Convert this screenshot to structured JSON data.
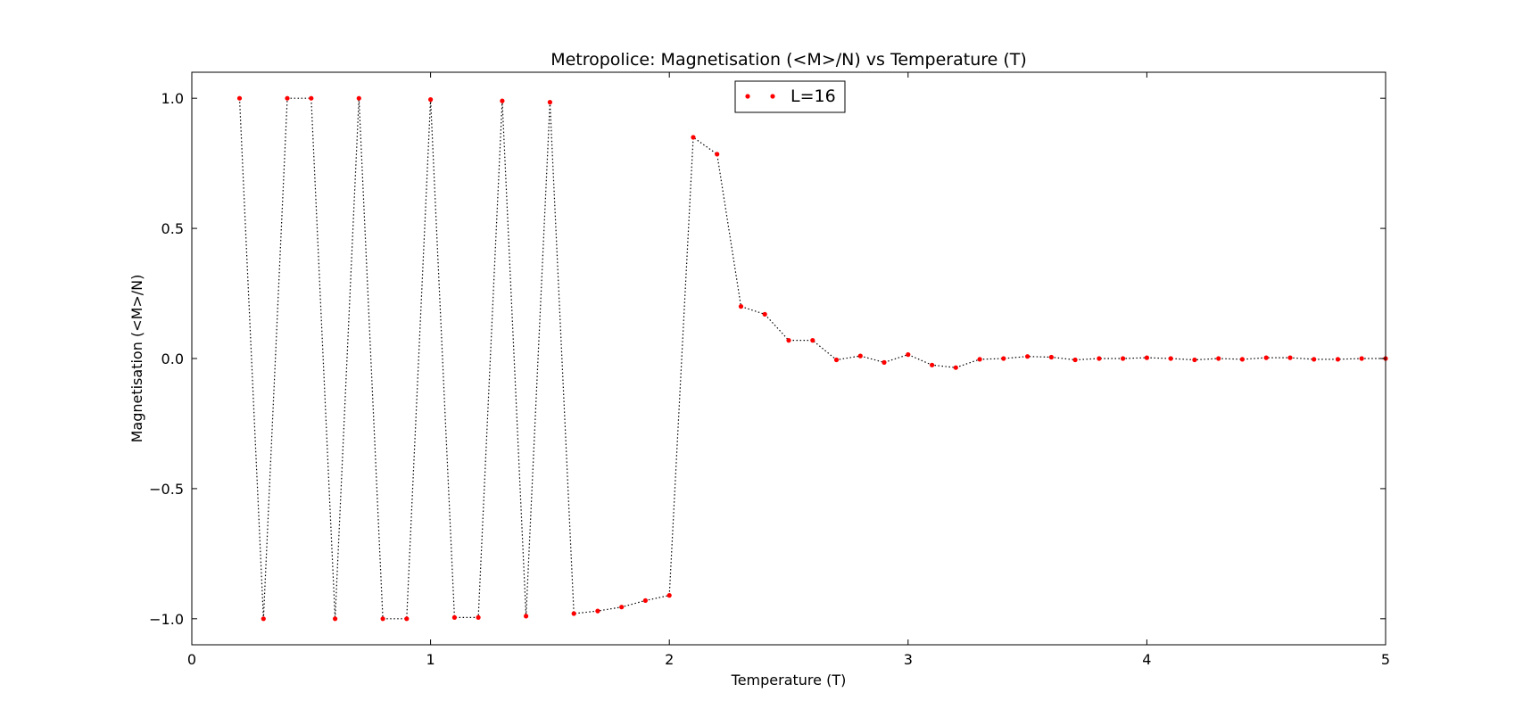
{
  "chart_data": {
    "type": "line",
    "title": "Metropolice: Magnetisation (<M>/N) vs Temperature (T)",
    "xlabel": "Temperature (T)",
    "ylabel": "Magnetisation (<M>/N)",
    "xlim": [
      0,
      5
    ],
    "ylim": [
      -1.1,
      1.1
    ],
    "xticks": [
      0,
      1,
      2,
      3,
      4,
      5
    ],
    "xtick_labels": [
      "0",
      "1",
      "2",
      "3",
      "4",
      "5"
    ],
    "yticks": [
      -1.0,
      -0.5,
      0.0,
      0.5,
      1.0
    ],
    "ytick_labels": [
      "−1.0",
      "−0.5",
      "0.0",
      "0.5",
      "1.0"
    ],
    "grid": false,
    "legend": {
      "position": "top-center"
    },
    "series": [
      {
        "name": "L=16",
        "color": "#ff0000",
        "line_color": "#000000",
        "line_style": "dotted",
        "marker": "point",
        "x": [
          0.2,
          0.3,
          0.4,
          0.5,
          0.6,
          0.7,
          0.8,
          0.9,
          1.0,
          1.1,
          1.2,
          1.3,
          1.4,
          1.5,
          1.6,
          1.7,
          1.8,
          1.9,
          2.0,
          2.1,
          2.2,
          2.3,
          2.4,
          2.5,
          2.6,
          2.7,
          2.8,
          2.9,
          3.0,
          3.1,
          3.2,
          3.3,
          3.4,
          3.5,
          3.6,
          3.7,
          3.8,
          3.9,
          4.0,
          4.1,
          4.2,
          4.3,
          4.4,
          4.5,
          4.6,
          4.7,
          4.8,
          4.9,
          5.0
        ],
        "y": [
          1.0,
          -1.0,
          1.0,
          1.0,
          -1.0,
          1.0,
          -1.0,
          -1.0,
          0.995,
          -0.995,
          -0.995,
          0.99,
          -0.99,
          0.985,
          -0.98,
          -0.97,
          -0.955,
          -0.93,
          -0.91,
          0.85,
          0.785,
          0.2,
          0.17,
          0.07,
          0.07,
          -0.005,
          0.01,
          -0.015,
          0.015,
          -0.025,
          -0.035,
          -0.003,
          0.0,
          0.008,
          0.005,
          -0.005,
          0.0,
          0.0,
          0.003,
          0.0,
          -0.005,
          0.0,
          -0.003,
          0.003,
          0.003,
          -0.003,
          -0.003,
          0.0,
          0.0
        ]
      }
    ]
  }
}
